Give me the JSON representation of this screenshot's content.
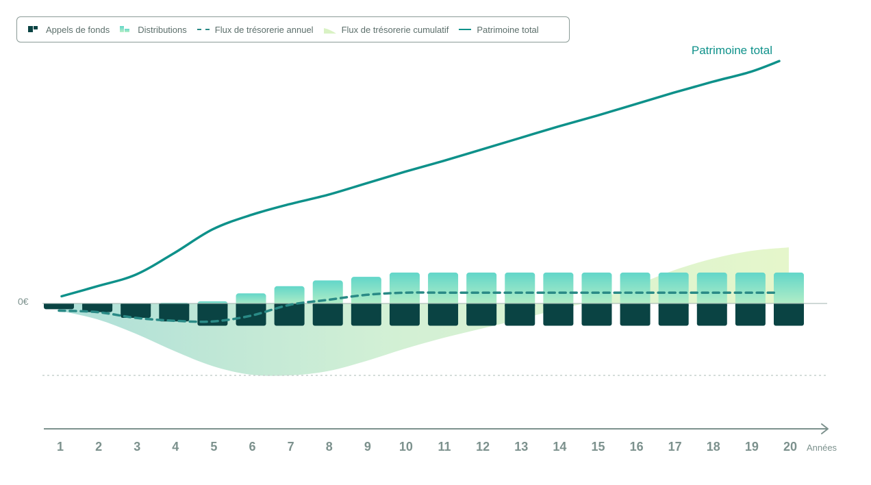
{
  "legend": {
    "items": [
      {
        "key": "calls",
        "label": "Appels de fonds"
      },
      {
        "key": "distributions",
        "label": "Distributions"
      },
      {
        "key": "annual",
        "label": "Flux de trésorerie annuel"
      },
      {
        "key": "cumulative",
        "label": "Flux de trésorerie cumulatif"
      },
      {
        "key": "patrimoine",
        "label": "Patrimoine total"
      }
    ]
  },
  "colors": {
    "dark": "#0a4343",
    "teal": "#0e918a",
    "dashed": "#2a8a86",
    "dist_top": "#62d6c9",
    "dist_bottom": "#b8efc6",
    "cum_left": "#a9ddd6",
    "cum_right": "#e4f6c8",
    "axis": "#7c918d",
    "label": "#7c918d"
  },
  "chart_data": {
    "type": "bar",
    "title": "",
    "xlabel": "Années",
    "ylabel": "",
    "zero_label": "0€",
    "series_label": "Patrimoine total",
    "categories": [
      "1",
      "2",
      "3",
      "4",
      "5",
      "6",
      "7",
      "8",
      "9",
      "10",
      "11",
      "12",
      "13",
      "14",
      "15",
      "16",
      "17",
      "18",
      "19",
      "20"
    ],
    "ylim": [
      -100,
      320
    ],
    "series": [
      {
        "name": "Appels de fonds",
        "values": [
          -8,
          -12,
          -20,
          -25,
          -31,
          -31,
          -31,
          -31,
          -31,
          -31,
          -31,
          -31,
          -31,
          -31,
          -31,
          -31,
          -31,
          -31,
          -31,
          -31
        ]
      },
      {
        "name": "Distributions",
        "values": [
          0,
          0,
          0,
          1,
          3,
          14,
          24,
          32,
          37,
          43,
          43,
          43,
          43,
          43,
          43,
          43,
          43,
          43,
          43,
          43
        ]
      },
      {
        "name": "Flux de trésorerie annuel",
        "values": [
          -10,
          -12,
          -20,
          -24,
          -25,
          -17,
          -2,
          5,
          12,
          15,
          15,
          15,
          15,
          15,
          15,
          15,
          15,
          15,
          15,
          15
        ]
      },
      {
        "name": "Flux de trésorerie cumulatif",
        "values": [
          -10,
          -22,
          -42,
          -66,
          -87,
          -99,
          -100,
          -94,
          -80,
          -63,
          -48,
          -35,
          -22,
          -8,
          5,
          25,
          46,
          62,
          73,
          78
        ]
      },
      {
        "name": "Patrimoine total",
        "values": [
          10,
          24,
          40,
          70,
          103,
          123,
          138,
          151,
          167,
          183,
          198,
          214,
          230,
          246,
          261,
          277,
          293,
          308,
          322,
          337
        ]
      }
    ]
  }
}
